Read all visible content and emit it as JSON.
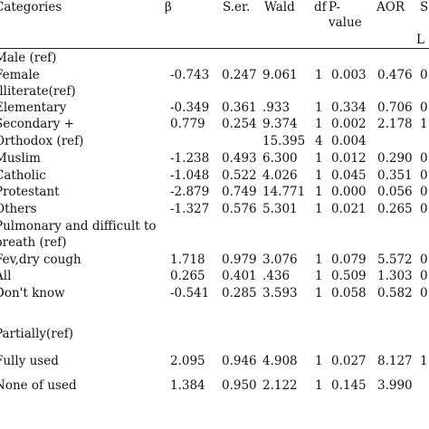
{
  "header": {
    "categories": "Categories",
    "beta": "β",
    "ser": "S.er.",
    "wald": "Wald",
    "df": "df",
    "p_line1": "P-",
    "p_line2": "value",
    "aor": "AOR",
    "extra": "S",
    "extra2": "L"
  },
  "rows": [
    {
      "label": "Male (ref)",
      "beta": "",
      "ser": "",
      "wald": "",
      "df": "",
      "p": "",
      "aor": "",
      "x": ""
    },
    {
      "label": "Female",
      "beta": "-0.743",
      "ser": "0.247",
      "wald": "9.061",
      "df": "1",
      "p": "0.003",
      "aor": "0.476",
      "x": "0"
    },
    {
      "label": "Illiterate(ref)",
      "beta": "",
      "ser": "",
      "wald": "",
      "df": "",
      "p": "",
      "aor": "",
      "x": ""
    },
    {
      "label": "Elementary",
      "beta": "-0.349",
      "ser": "0.361",
      "wald": ".933",
      "df": "1",
      "p": "0.334",
      "aor": "0.706",
      "x": "0"
    },
    {
      "label": "Secondary +",
      "beta": "0.779",
      "ser": "0.254",
      "wald": "9.374",
      "df": "1",
      "p": "0.002",
      "aor": "2.178",
      "x": "1"
    },
    {
      "label": "Orthodox (ref)",
      "beta": "",
      "ser": "",
      "wald": "15.395",
      "df": "4",
      "p": "0.004",
      "aor": "",
      "x": ""
    },
    {
      "label": "Muslim",
      "beta": "-1.238",
      "ser": "0.493",
      "wald": "6.300",
      "df": "1",
      "p": "0.012",
      "aor": "0.290",
      "x": "0"
    },
    {
      "label": "Catholic",
      "beta": "-1.048",
      "ser": "0.522",
      "wald": "4.026",
      "df": "1",
      "p": "0.045",
      "aor": "0.351",
      "x": "0"
    },
    {
      "label": "Protestant",
      "beta": "-2.879",
      "ser": "0.749",
      "wald": "14.771",
      "df": "1",
      "p": "0.000",
      "aor": "0.056",
      "x": "0"
    },
    {
      "label": "Others",
      "beta": "-1.327",
      "ser": "0.576",
      "wald": "5.301",
      "df": "1",
      "p": "0.021",
      "aor": "0.265",
      "x": "0"
    },
    {
      "label": "Pulmonary and difficult to",
      "beta": "",
      "ser": "",
      "wald": "",
      "df": "",
      "p": "",
      "aor": "",
      "x": ""
    },
    {
      "label": "breath (ref)",
      "beta": "",
      "ser": "",
      "wald": "",
      "df": "",
      "p": "",
      "aor": "",
      "x": ""
    },
    {
      "label": "Fev,dry  cough",
      "beta": "1.718",
      "ser": "0.979",
      "wald": "3.076",
      "df": "1",
      "p": "0.079",
      "aor": "5.572",
      "x": "0"
    },
    {
      "label": "All",
      "beta": "0.265",
      "ser": "0.401",
      "wald": ".436",
      "df": "1",
      "p": "0.509",
      "aor": "1.303",
      "x": "0"
    },
    {
      "label": "Don't know",
      "beta": "-0.541",
      "ser": "0.285",
      "wald": "3.593",
      "df": "1",
      "p": "0.058",
      "aor": "0.582",
      "x": "0"
    },
    {
      "label": "Partially(ref)",
      "beta": "",
      "ser": "",
      "wald": "",
      "df": "",
      "p": "",
      "aor": "",
      "x": ""
    },
    {
      "label": "Fully used",
      "beta": "2.095",
      "ser": "0.946",
      "wald": "4.908",
      "df": "1",
      "p": "0.027",
      "aor": "8.127",
      "x": "1"
    },
    {
      "label": "None of used",
      "beta": "1.384",
      "ser": "0.950",
      "wald": "2.122",
      "df": "1",
      "p": "0.145",
      "aor": "3.990",
      "x": ""
    }
  ]
}
